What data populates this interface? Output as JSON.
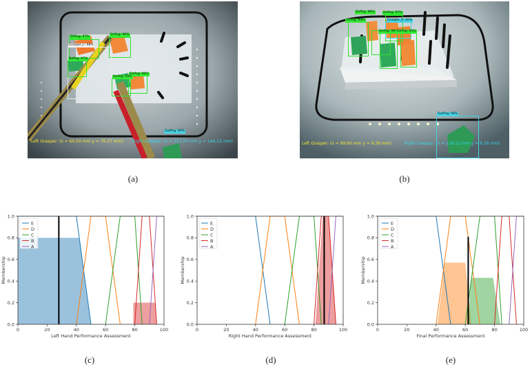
{
  "captions": {
    "a": "(a)",
    "b": "(b)",
    "c": "(c)",
    "d": "(d)",
    "e": "(e)"
  },
  "photo_a": {
    "left_readout": "Left Grasper: (x = 60.50 mm     y =  76.27 mm)",
    "right_readout": "Right Grasper: (x = 223.50 mm  y = 144.12 mm)",
    "labels": [
      "OnPeg: 97%",
      "OnPeg: 96%",
      "Grasper_L: 98%",
      "NoPeg: 97%",
      "OnPeg: 96%",
      "OnPeg: 94%",
      "OutPeg: 89%"
    ]
  },
  "photo_b": {
    "left_readout": "Left Grasper: (x = 99.60 mm     y =  9.36 mm)",
    "right_readout": "Right Grasper: (x = 116.52 mm  y = 9.39 mm)",
    "labels": [
      "OnPeg: 94%",
      "OnPeg: 96%",
      "OnPeg: 97%",
      "Grasper_R: 92%",
      "OnPeg: 96%",
      "OnPeg: 95%",
      "OutPeg: 98%"
    ]
  },
  "chart_data": [
    {
      "type": "area",
      "id": "c",
      "xlabel": "Left Hand Performance Assessment",
      "ylabel": "Membership",
      "xlim": [
        0,
        100
      ],
      "ylim": [
        0,
        1
      ],
      "xticks": [
        "0",
        "20",
        "40",
        "60",
        "80",
        "100"
      ],
      "yticks": [
        "0.0",
        "0.2",
        "0.4",
        "0.6",
        "0.8",
        "1.0"
      ],
      "legend": [
        "E",
        "D",
        "C",
        "B",
        "A"
      ],
      "legend_position": "top-left",
      "series": [
        {
          "name": "E",
          "color": "#1f77b4",
          "x": [
            0,
            40,
            50
          ],
          "y": [
            1,
            1,
            0
          ]
        },
        {
          "name": "D",
          "color": "#ff7f0e",
          "x": [
            40,
            50,
            60,
            70
          ],
          "y": [
            0,
            1,
            1,
            0
          ]
        },
        {
          "name": "C",
          "color": "#2ca02c",
          "x": [
            60,
            70,
            80,
            85
          ],
          "y": [
            0,
            1,
            1,
            0
          ]
        },
        {
          "name": "B",
          "color": "#d62728",
          "x": [
            80,
            85,
            90,
            95
          ],
          "y": [
            0,
            1,
            1,
            0
          ]
        },
        {
          "name": "A",
          "color": "#9467bd",
          "x": [
            90,
            95,
            100
          ],
          "y": [
            0,
            1,
            1
          ]
        }
      ],
      "fills": [
        {
          "color": "#1f77b4",
          "x": [
            0,
            42,
            50,
            0
          ],
          "y": [
            0.8,
            0.8,
            0,
            0
          ]
        },
        {
          "color": "#d62728",
          "x": [
            79,
            94,
            95,
            79
          ],
          "y": [
            0.2,
            0.2,
            0,
            0
          ]
        }
      ],
      "vline": {
        "x": 28,
        "y": 1.0
      }
    },
    {
      "type": "area",
      "id": "d",
      "xlabel": "Right Hand Performance Assessment",
      "ylabel": "Membership",
      "xlim": [
        0,
        100
      ],
      "ylim": [
        0,
        1
      ],
      "xticks": [
        "0",
        "20",
        "40",
        "60",
        "80",
        "100"
      ],
      "yticks": [
        "0.0",
        "0.2",
        "0.4",
        "0.6",
        "0.8",
        "1.0"
      ],
      "legend": [
        "E",
        "D",
        "C",
        "B",
        "A"
      ],
      "legend_position": "top-left",
      "series": [
        {
          "name": "E",
          "color": "#1f77b4",
          "x": [
            0,
            40,
            50
          ],
          "y": [
            1,
            1,
            0
          ]
        },
        {
          "name": "D",
          "color": "#ff7f0e",
          "x": [
            40,
            50,
            60,
            70
          ],
          "y": [
            0,
            1,
            1,
            0
          ]
        },
        {
          "name": "C",
          "color": "#2ca02c",
          "x": [
            60,
            70,
            80,
            85
          ],
          "y": [
            0,
            1,
            1,
            0
          ]
        },
        {
          "name": "B",
          "color": "#d62728",
          "x": [
            80,
            85,
            90,
            95
          ],
          "y": [
            0,
            1,
            1,
            0
          ]
        },
        {
          "name": "A",
          "color": "#9467bd",
          "x": [
            90,
            95,
            100
          ],
          "y": [
            0,
            1,
            1
          ]
        }
      ],
      "fills": [
        {
          "color": "#d62728",
          "x": [
            81,
            86,
            90,
            95
          ],
          "y": [
            0,
            1,
            1,
            0
          ]
        }
      ],
      "vline": {
        "x": 87,
        "y": 1.0
      }
    },
    {
      "type": "area",
      "id": "e",
      "xlabel": "Final Performance Assessment",
      "ylabel": "Membership",
      "xlim": [
        0,
        100
      ],
      "ylim": [
        0,
        1
      ],
      "xticks": [
        "0",
        "20",
        "40",
        "60",
        "80",
        "100"
      ],
      "yticks": [
        "0.0",
        "0.2",
        "0.4",
        "0.6",
        "0.8",
        "1.0"
      ],
      "legend": [
        "E",
        "D",
        "C",
        "B",
        "A"
      ],
      "legend_position": "top-left",
      "series": [
        {
          "name": "E",
          "color": "#1f77b4",
          "x": [
            0,
            40,
            50
          ],
          "y": [
            1,
            1,
            0
          ]
        },
        {
          "name": "D",
          "color": "#ff7f0e",
          "x": [
            40,
            50,
            60,
            70
          ],
          "y": [
            0,
            1,
            1,
            0
          ]
        },
        {
          "name": "C",
          "color": "#2ca02c",
          "x": [
            60,
            70,
            80,
            85
          ],
          "y": [
            0,
            1,
            1,
            0
          ]
        },
        {
          "name": "B",
          "color": "#d62728",
          "x": [
            80,
            85,
            90,
            95
          ],
          "y": [
            0,
            1,
            1,
            0
          ]
        },
        {
          "name": "A",
          "color": "#9467bd",
          "x": [
            90,
            95,
            100
          ],
          "y": [
            0,
            1,
            1
          ]
        }
      ],
      "fills": [
        {
          "color": "#ff7f0e",
          "x": [
            41,
            46,
            60,
            64,
            41
          ],
          "y": [
            0,
            0.57,
            0.57,
            0,
            0
          ]
        },
        {
          "color": "#2ca02c",
          "x": [
            62,
            64,
            79,
            84,
            62
          ],
          "y": [
            0,
            0.43,
            0.43,
            0,
            0
          ]
        }
      ],
      "vline": {
        "x": 62,
        "y": 0.81
      }
    }
  ]
}
